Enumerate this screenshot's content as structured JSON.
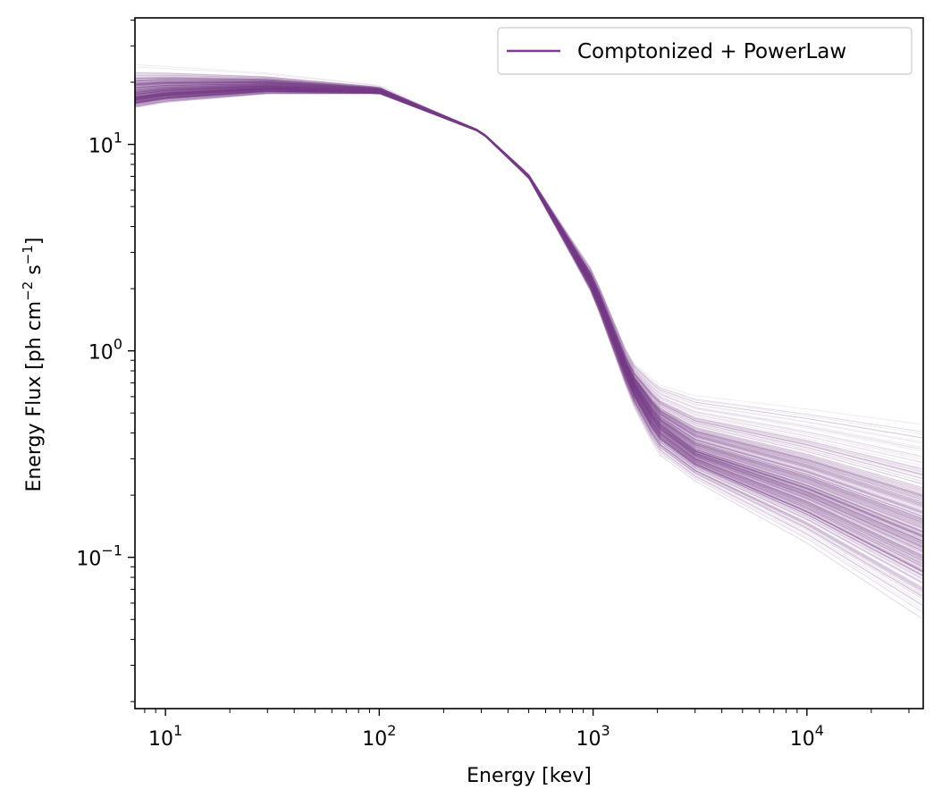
{
  "chart_data": {
    "type": "line",
    "xlabel": "Energy [kev]",
    "ylabel": "Energy Flux [ph cm",
    "ylabel_exp1": "−2",
    "ylabel_mid": " s",
    "ylabel_exp2": "−1",
    "ylabel_end": "]",
    "xscale": "log",
    "yscale": "log",
    "xlim": [
      7.2,
      35000
    ],
    "ylim": [
      0.0185,
      41
    ],
    "grid": false,
    "legend_position": "top-right",
    "xticks": [
      {
        "value": 10,
        "base": "10",
        "exp": "1"
      },
      {
        "value": 100,
        "base": "10",
        "exp": "2"
      },
      {
        "value": 1000,
        "base": "10",
        "exp": "3"
      },
      {
        "value": 10000,
        "base": "10",
        "exp": "4"
      }
    ],
    "yticks": [
      {
        "value": 0.1,
        "base": "10",
        "exp": "−1"
      },
      {
        "value": 1,
        "base": "10",
        "exp": "0"
      },
      {
        "value": 10,
        "base": "10",
        "exp": "1"
      }
    ],
    "series": [
      {
        "name": "Comptonized + PowerLaw",
        "color": "#7b3f8c",
        "n_samples": 400,
        "envelope": {
          "x": [
            7.2,
            10,
            30,
            100,
            300,
            500,
            1000,
            1500,
            2000,
            3000,
            10000,
            35000
          ],
          "median": [
            17,
            17.8,
            18.8,
            18,
            11.5,
            7.0,
            2.1,
            0.72,
            0.45,
            0.33,
            0.22,
            0.13
          ],
          "lower": [
            13.5,
            14.5,
            16.5,
            17.2,
            11.2,
            6.6,
            1.6,
            0.5,
            0.26,
            0.19,
            0.08,
            0.028
          ],
          "upper": [
            29,
            27.5,
            24,
            20,
            11.8,
            7.4,
            2.7,
            1.0,
            0.85,
            0.82,
            0.8,
            0.8
          ]
        }
      }
    ]
  }
}
